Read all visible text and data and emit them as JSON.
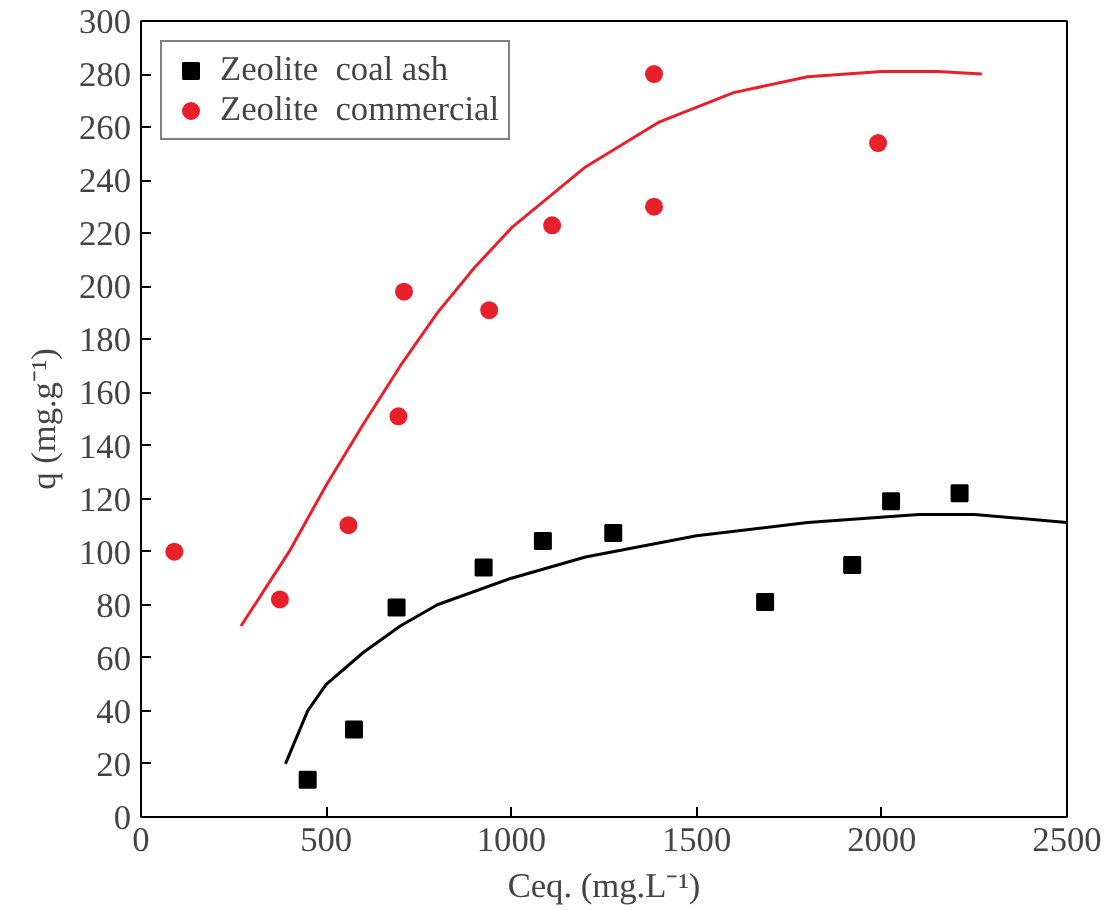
{
  "chart_data": {
    "type": "scatter",
    "xlabel": "Ceq. (mg.L⁻¹)",
    "ylabel": "q (mg.g⁻¹)",
    "xlim": [
      0,
      2500
    ],
    "ylim": [
      0,
      300
    ],
    "xticks": [
      0,
      500,
      1000,
      1500,
      2000,
      2500
    ],
    "yticks": [
      0,
      20,
      40,
      60,
      80,
      100,
      120,
      140,
      160,
      180,
      200,
      220,
      240,
      260,
      280,
      300
    ],
    "grid": false,
    "legend": "top left",
    "series": [
      {
        "name": "Zeolite  coal ash",
        "color": "#000000",
        "marker": "square",
        "x": [
          450,
          575,
          690,
          925,
          1085,
          1275,
          1685,
          1920,
          2025,
          2210
        ],
        "values": [
          14,
          33,
          79,
          94,
          104,
          107,
          81,
          95,
          119,
          122
        ]
      },
      {
        "name": "Zeolite  commercial",
        "color": "#e8202a",
        "marker": "circle",
        "x": [
          90,
          375,
          560,
          695,
          710,
          940,
          1110,
          1385,
          1385,
          1990
        ],
        "values": [
          100,
          82,
          110,
          151,
          198,
          191,
          223,
          230,
          280,
          254
        ]
      },
      {
        "type": "line",
        "color": "#e8202a",
        "x": [
          270,
          400,
          500,
          600,
          700,
          800,
          900,
          1000,
          1200,
          1400,
          1600,
          1800,
          2000,
          2150,
          2270
        ],
        "values": [
          72,
          100,
          125,
          148,
          170,
          190,
          207,
          222,
          245,
          262,
          273,
          279,
          281,
          281,
          280
        ]
      },
      {
        "type": "line",
        "color": "#000000",
        "x": [
          390,
          450,
          500,
          600,
          700,
          800,
          1000,
          1200,
          1500,
          1800,
          2100,
          2250,
          2500
        ],
        "values": [
          20,
          40,
          50,
          62,
          72,
          80,
          90,
          98,
          106,
          111,
          114,
          114,
          111
        ]
      }
    ]
  }
}
